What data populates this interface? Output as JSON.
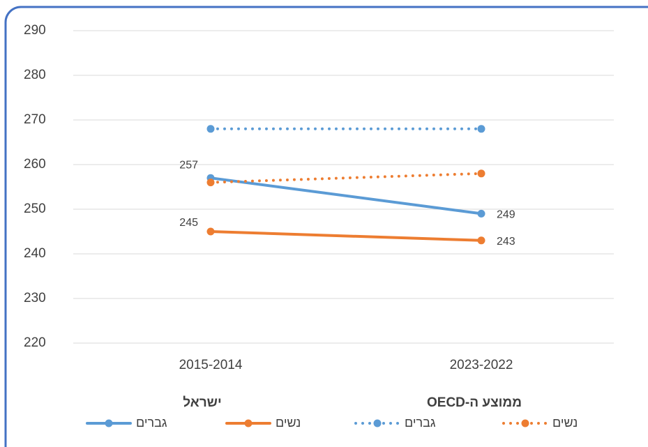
{
  "chart_data": {
    "type": "line",
    "categories": [
      "2015-2014",
      "2023-2022"
    ],
    "legend_groups": [
      "ישראל",
      "ממוצע ה-OECD"
    ],
    "series": [
      {
        "name": "גברים",
        "color": "#5b9bd5",
        "dash": "solid",
        "group": 0,
        "show_labels": true,
        "values": [
          257,
          249
        ]
      },
      {
        "name": "נשים",
        "color": "#ed7d31",
        "dash": "solid",
        "group": 0,
        "show_labels": true,
        "values": [
          245,
          243
        ]
      },
      {
        "name": "גברים",
        "color": "#5b9bd5",
        "dash": "dotted",
        "group": 1,
        "show_labels": false,
        "values": [
          268,
          268
        ]
      },
      {
        "name": "נשים",
        "color": "#ed7d31",
        "dash": "dotted",
        "group": 1,
        "show_labels": false,
        "values": [
          256,
          258
        ]
      }
    ],
    "ylim": [
      220,
      290
    ],
    "yticks": [
      220,
      230,
      240,
      250,
      260,
      270,
      280,
      290
    ],
    "grid": true,
    "legend": "bottom"
  }
}
